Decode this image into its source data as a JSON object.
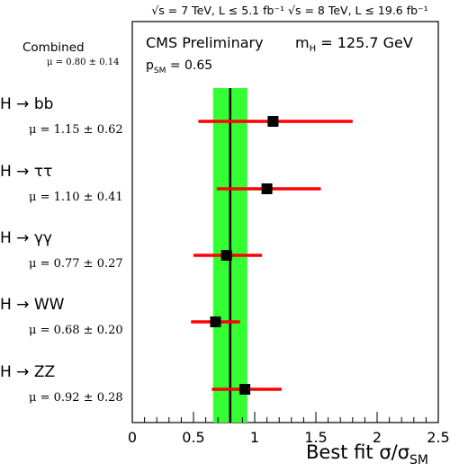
{
  "chart_data": {
    "type": "scatter",
    "header": "√s = 7 TeV, L ≤ 5.1 fb⁻¹  √s = 8 TeV, L ≤ 19.6 fb⁻¹",
    "legend_text": {
      "line1_left": "CMS Preliminary",
      "line1_right": "m",
      "line1_right_sub": "H",
      "line1_right_value": " = 125.7 GeV",
      "line2": "p",
      "line2_sub": "SM",
      "line2_value": " = 0.65"
    },
    "xlabel": "Best fit σ/σ",
    "xlabel_sub": "SM",
    "xlim": [
      0,
      2.5
    ],
    "xticks": [
      0,
      0.5,
      1,
      1.5,
      2,
      2.5
    ],
    "xtick_labels": [
      "0",
      "0.5",
      "1",
      "1.5",
      "2",
      "2.5"
    ],
    "combined": {
      "label": "Combined",
      "mu_text": "μ = 0.80 ± 0.14",
      "value": 0.8,
      "band": [
        0.66,
        0.94
      ],
      "colors": {
        "band": "#33ff33",
        "line": "#000000"
      }
    },
    "channels": [
      {
        "name": "H → bb",
        "mu_text": "μ = 1.15 ± 0.62",
        "value": 1.15,
        "lo": 0.54,
        "hi": 1.8
      },
      {
        "name": "H → ττ",
        "mu_text": "μ = 1.10 ± 0.41",
        "value": 1.1,
        "lo": 0.69,
        "hi": 1.54
      },
      {
        "name": "H → γγ",
        "mu_text": "μ = 0.77 ± 0.27",
        "value": 0.77,
        "lo": 0.5,
        "hi": 1.06
      },
      {
        "name": "H → WW",
        "mu_text": "μ = 0.68 ± 0.20",
        "value": 0.68,
        "lo": 0.48,
        "hi": 0.88
      },
      {
        "name": "H → ZZ",
        "mu_text": "μ = 0.92 ± 0.28",
        "value": 0.92,
        "lo": 0.65,
        "hi": 1.22
      }
    ],
    "colors": {
      "errorbar": "#ff0000",
      "marker": "#000000",
      "frame": "#000000"
    }
  }
}
